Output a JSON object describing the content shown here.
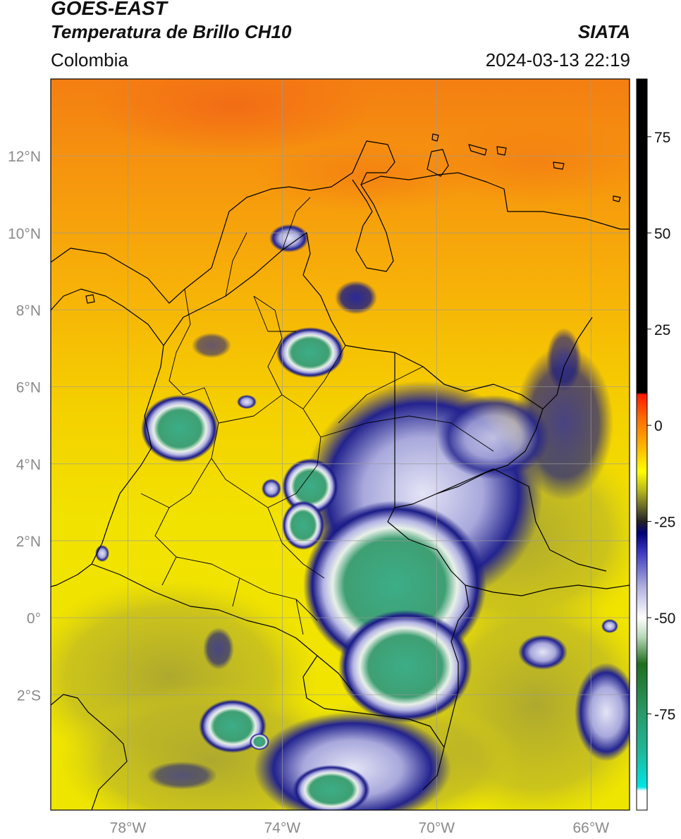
{
  "header": {
    "satellite": "GOES-EAST",
    "product": "Temperatura de Brillo CH10",
    "region": "Colombia",
    "agency": "SIATA",
    "datetime": "2024-03-13 22:19"
  },
  "map": {
    "lat_ticks": [
      {
        "label": "12°N",
        "lat": 12
      },
      {
        "label": "10°N",
        "lat": 10
      },
      {
        "label": "8°N",
        "lat": 8
      },
      {
        "label": "6°N",
        "lat": 6
      },
      {
        "label": "4°N",
        "lat": 4
      },
      {
        "label": "2°N",
        "lat": 2
      },
      {
        "label": "0°",
        "lat": 0
      },
      {
        "label": "2°S",
        "lat": -2
      }
    ],
    "lon_ticks": [
      {
        "label": "78°W",
        "lon": -78
      },
      {
        "label": "74°W",
        "lon": -74
      },
      {
        "label": "70°W",
        "lon": -70
      },
      {
        "label": "66°W",
        "lon": -66
      }
    ],
    "lon_range": [
      -80,
      -65
    ],
    "lat_range": [
      -5,
      14
    ]
  },
  "colorbar": {
    "ticks": [
      {
        "label": "75",
        "value": 75
      },
      {
        "label": "50",
        "value": 50
      },
      {
        "label": "25",
        "value": 25
      },
      {
        "label": "0",
        "value": 0
      },
      {
        "label": "-25",
        "value": -25
      },
      {
        "label": "-50",
        "value": -50
      },
      {
        "label": "-75",
        "value": -75
      }
    ],
    "range": [
      -100,
      90
    ],
    "stops": [
      {
        "value": -100,
        "color": "#ffffff"
      },
      {
        "value": -95,
        "color": "#ffffff"
      },
      {
        "value": -94,
        "color": "#00e5e5"
      },
      {
        "value": -85,
        "color": "#1fb89a"
      },
      {
        "value": -75,
        "color": "#2a9a6a"
      },
      {
        "value": -62,
        "color": "#1e6e1e"
      },
      {
        "value": -55,
        "color": "#b8d8b8"
      },
      {
        "value": -50,
        "color": "#ffffff"
      },
      {
        "value": -42,
        "color": "#b0b0e0"
      },
      {
        "value": -33,
        "color": "#3a3ac0"
      },
      {
        "value": -28,
        "color": "#00007a"
      },
      {
        "value": -25,
        "color": "#222222"
      },
      {
        "value": -22,
        "color": "#5a5a2a"
      },
      {
        "value": -17,
        "color": "#b6b61e"
      },
      {
        "value": -12,
        "color": "#ffff00"
      },
      {
        "value": -5,
        "color": "#ffb000"
      },
      {
        "value": 2,
        "color": "#ff6a00"
      },
      {
        "value": 8,
        "color": "#ff1a00"
      },
      {
        "value": 8.5,
        "color": "#000000"
      },
      {
        "value": 90,
        "color": "#000000"
      }
    ]
  },
  "colors": {
    "warm_orange": "#f58a12",
    "yellow": "#f3e500",
    "olive": "#b9b42a",
    "navy": "#14147a",
    "lavender": "#c7c7ea",
    "teal_green": "#3aa883",
    "border": "#000000",
    "grid": "#9a9a9a"
  }
}
